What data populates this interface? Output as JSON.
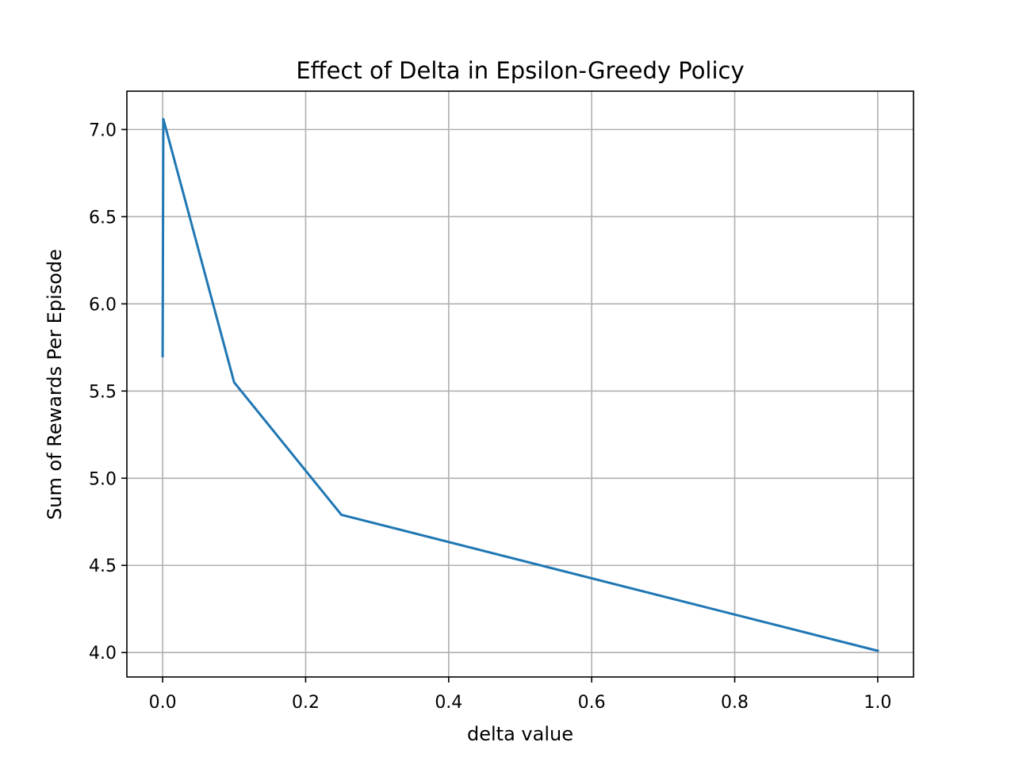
{
  "chart_data": {
    "type": "line",
    "title": "Effect of Delta in Epsilon-Greedy Policy",
    "xlabel": "delta value",
    "ylabel": "Sum of Rewards Per Episode",
    "xlim": [
      -0.05,
      1.05
    ],
    "ylim": [
      3.86,
      7.22
    ],
    "x_ticks": [
      0.0,
      0.2,
      0.4,
      0.6,
      0.8,
      1.0
    ],
    "x_tick_labels": [
      "0.0",
      "0.2",
      "0.4",
      "0.6",
      "0.8",
      "1.0"
    ],
    "y_ticks": [
      4.0,
      4.5,
      5.0,
      5.5,
      6.0,
      6.5,
      7.0
    ],
    "y_tick_labels": [
      "4.0",
      "4.5",
      "5.0",
      "5.5",
      "6.0",
      "6.5",
      "7.0"
    ],
    "grid": true,
    "series": [
      {
        "color": "#1f77b4",
        "x": [
          0.0,
          0.001,
          0.1,
          0.25,
          1.0
        ],
        "y": [
          5.7,
          7.06,
          5.55,
          4.79,
          4.01
        ]
      }
    ]
  }
}
